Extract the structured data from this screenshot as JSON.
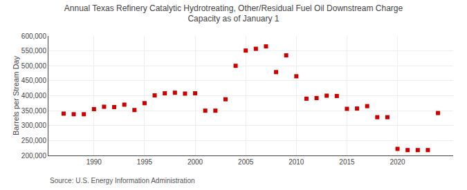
{
  "chart_data": {
    "type": "scatter",
    "title": "Annual Texas Refinery Catalytic Hydrotreating, Other/Residual Fuel Oil Downstream Charge\nCapacity as of January 1",
    "ylabel": "Barrels per Stream Day",
    "annotations": [
      {
        "text": "Source: U.S. Energy Information Administration"
      }
    ],
    "x": [
      1987,
      1988,
      1989,
      1990,
      1991,
      1992,
      1993,
      1994,
      1995,
      1996,
      1997,
      1998,
      1999,
      2000,
      2001,
      2002,
      2003,
      2004,
      2005,
      2006,
      2007,
      2008,
      2009,
      2010,
      2011,
      2012,
      2013,
      2014,
      2015,
      2016,
      2017,
      2018,
      2019,
      2020,
      2021,
      2022,
      2023,
      2024
    ],
    "values": [
      340000,
      338000,
      338000,
      355000,
      363000,
      362000,
      370000,
      352000,
      375000,
      401000,
      408000,
      410000,
      407000,
      408000,
      350000,
      350000,
      388000,
      500000,
      551000,
      557000,
      565000,
      479000,
      535000,
      465000,
      390000,
      392000,
      400000,
      399000,
      356000,
      357000,
      365000,
      328000,
      328000,
      222000,
      218000,
      218000,
      218000,
      342000
    ],
    "color": "#cc0000",
    "marker": "square",
    "xlim": [
      1985.5,
      2025.5
    ],
    "xticks": [
      1990,
      1995,
      2000,
      2005,
      2010,
      2015,
      2020
    ],
    "ylim": [
      200000,
      600000
    ],
    "yticks": [
      {
        "value": 200000,
        "label": "200,000"
      },
      {
        "value": 250000,
        "label": "250,000"
      },
      {
        "value": 300000,
        "label": "300,000"
      },
      {
        "value": 350000,
        "label": "350,000"
      },
      {
        "value": 400000,
        "label": "400,000"
      },
      {
        "value": 450000,
        "label": "450,000"
      },
      {
        "value": 500000,
        "label": "500,000"
      },
      {
        "value": 550000,
        "label": "550,000"
      },
      {
        "value": 600000,
        "label": "600,000"
      }
    ],
    "grid": true
  }
}
